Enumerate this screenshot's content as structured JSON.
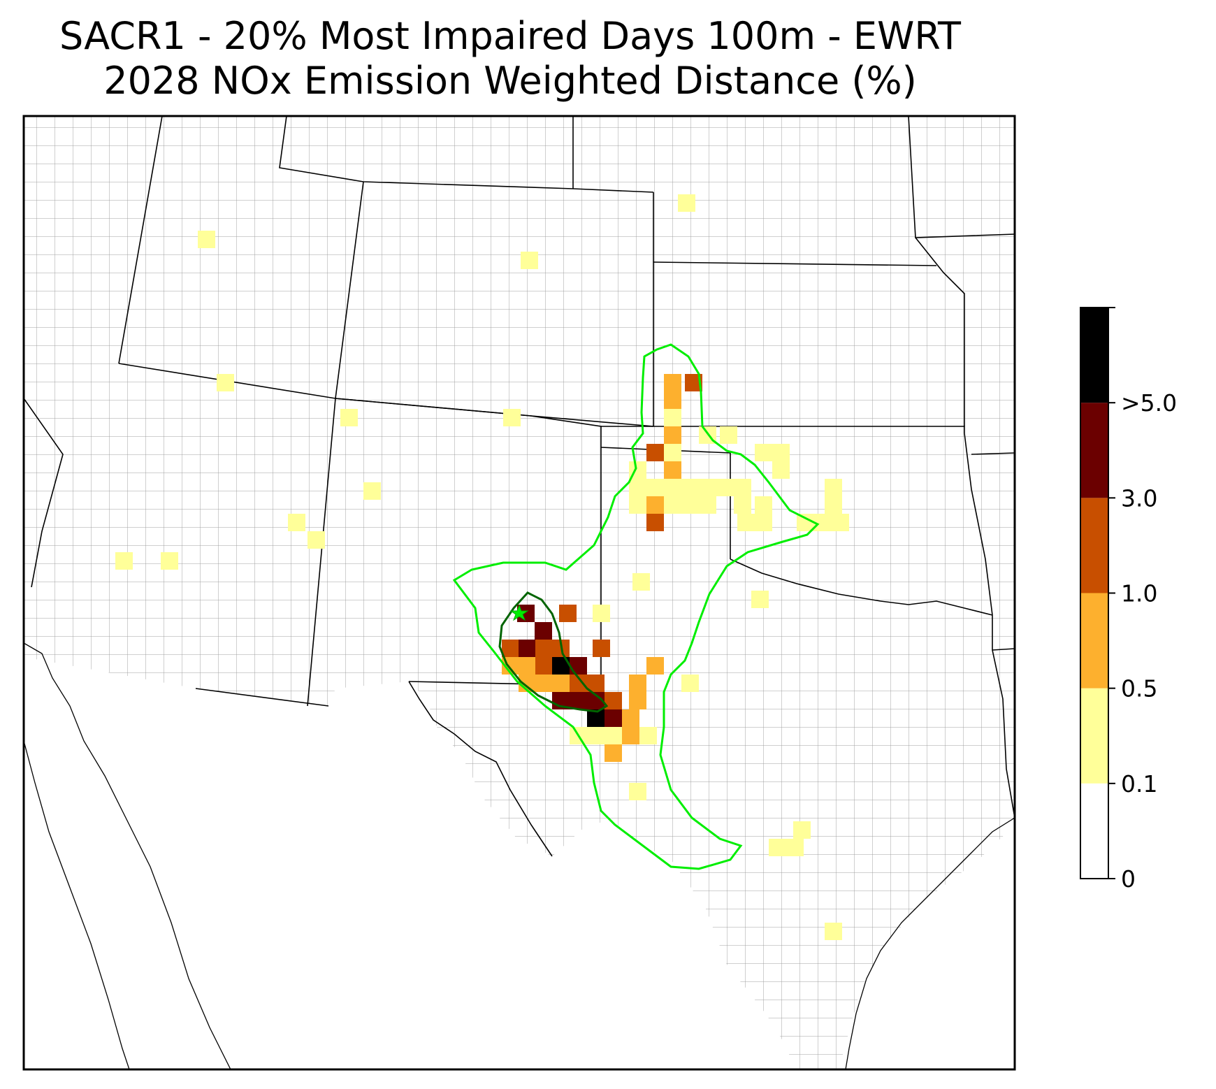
{
  "title": {
    "line1": "SACR1 - 20% Most Impaired Days 100m - EWRT",
    "line2": "2028 NOx Emission Weighted Distance (%)"
  },
  "colorbar": {
    "ticks": [
      "0",
      "0.1",
      "0.5",
      "1.0",
      "3.0",
      ">5.0"
    ],
    "bins": [
      {
        "range": "0 - 0.1",
        "color": "#ffffff"
      },
      {
        "range": "0.1 - 0.5",
        "color": "#ffff99"
      },
      {
        "range": "0.5 - 1.0",
        "color": "#fdb02e"
      },
      {
        "range": "1.0 - 3.0",
        "color": "#c84f00"
      },
      {
        "range": "3.0 - 5.0",
        "color": "#6b0000"
      },
      {
        "range": ">5.0",
        "color": "#000000"
      }
    ]
  },
  "colors": {
    "outer_contour": "#00ee00",
    "inner_contour": "#006400",
    "site_marker": "#00ee00",
    "state_border": "#000000",
    "county_border": "#a0a0a0"
  },
  "site": {
    "name": "SACR1",
    "marker": "star-icon"
  }
}
